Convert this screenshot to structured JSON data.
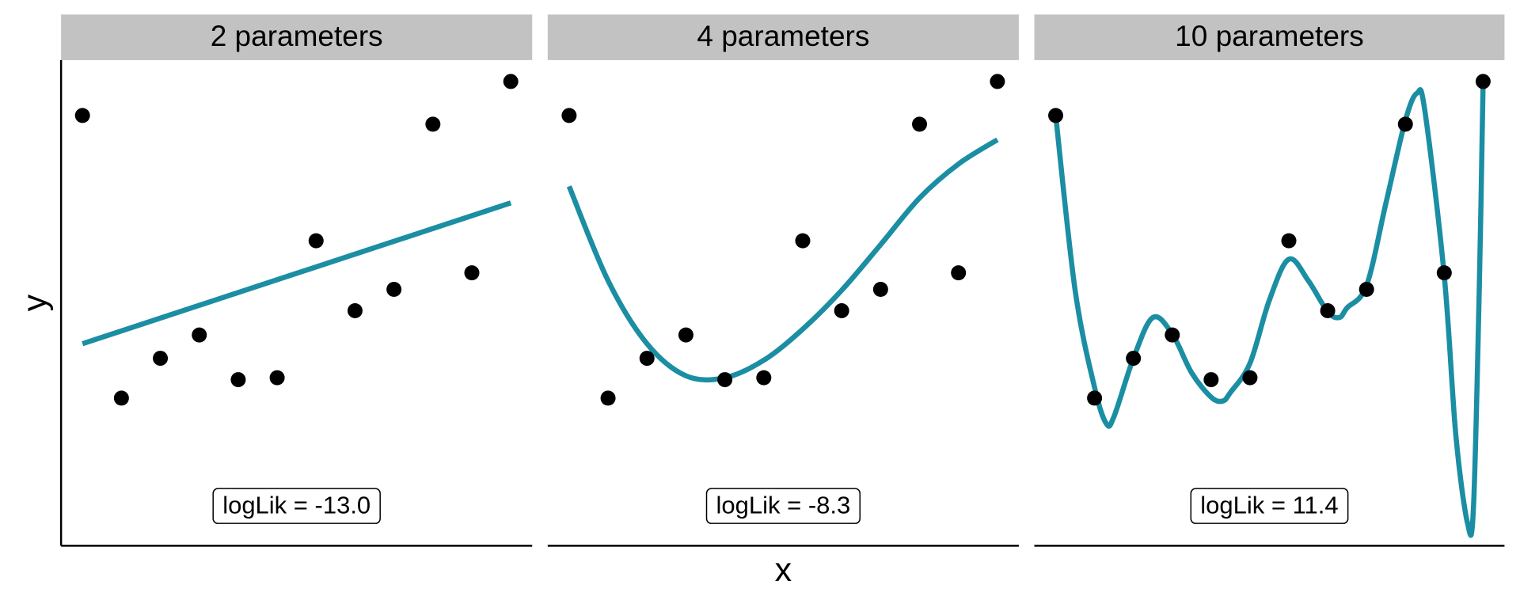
{
  "chart_data": [
    {
      "type": "scatter",
      "title": "2 parameters",
      "ylabel": "y",
      "x": [
        1,
        2,
        3,
        4,
        5,
        6,
        7,
        8,
        9,
        10,
        11,
        12
      ],
      "y": [
        44.3,
        15.2,
        19.3,
        21.7,
        17.1,
        17.3,
        31.4,
        24.2,
        26.4,
        43.4,
        28.1,
        47.8
      ],
      "point_color": "#000000",
      "fit": {
        "color": "#1b8ea3",
        "x": [
          1,
          12
        ],
        "y": [
          20.8,
          35.3
        ]
      },
      "annotation": "logLik = -13.0",
      "xlim": [
        0.45,
        12.55
      ],
      "ylim": [
        0,
        50
      ]
    },
    {
      "type": "scatter",
      "title": "4 parameters",
      "xlabel": "x",
      "x": [
        1,
        2,
        3,
        4,
        5,
        6,
        7,
        8,
        9,
        10,
        11,
        12
      ],
      "y": [
        44.3,
        15.2,
        19.3,
        21.7,
        17.1,
        17.3,
        31.4,
        24.2,
        26.4,
        43.4,
        28.1,
        47.8
      ],
      "point_color": "#000000",
      "fit": {
        "color": "#1b8ea3",
        "x": [
          1,
          2,
          3,
          4,
          5,
          6,
          7,
          8,
          9,
          10,
          11,
          12
        ],
        "y": [
          37.0,
          27.3,
          20.8,
          17.5,
          17.3,
          19.1,
          22.3,
          26.3,
          31.0,
          35.8,
          39.3,
          41.8
        ]
      },
      "annotation": "logLik = -8.3",
      "xlim": [
        0.45,
        12.55
      ],
      "ylim": [
        0,
        50
      ]
    },
    {
      "type": "scatter",
      "title": "10 parameters",
      "x": [
        1,
        2,
        3,
        4,
        5,
        6,
        7,
        8,
        9,
        10,
        11,
        12
      ],
      "y": [
        44.3,
        15.2,
        19.3,
        21.7,
        17.1,
        17.3,
        31.4,
        24.2,
        26.4,
        43.4,
        28.1,
        47.8
      ],
      "point_color": "#000000",
      "fit": {
        "color": "#1b8ea3",
        "x": [
          1,
          1.5,
          2,
          2.3,
          2.5,
          3,
          3.5,
          4,
          4.5,
          5,
          5.3,
          5.5,
          6,
          6.5,
          7,
          7.5,
          8,
          8.3,
          8.5,
          9,
          9.5,
          10,
          10.3,
          10.5,
          11,
          11.3,
          11.6,
          11.75,
          11.9,
          12
        ],
        "y": [
          44.3,
          26.3,
          16.3,
          12.6,
          13.3,
          19.3,
          23.5,
          21.8,
          17.8,
          15.3,
          14.9,
          15.8,
          18.8,
          25.3,
          29.5,
          27.3,
          24.1,
          23.5,
          24.5,
          26.8,
          35.3,
          43.8,
          46.6,
          44.8,
          27.8,
          11.3,
          2.3,
          3.8,
          26.3,
          47.8
        ]
      },
      "annotation": "logLik = 11.4",
      "xlim": [
        0.45,
        12.55
      ],
      "ylim": [
        0,
        50
      ]
    }
  ]
}
